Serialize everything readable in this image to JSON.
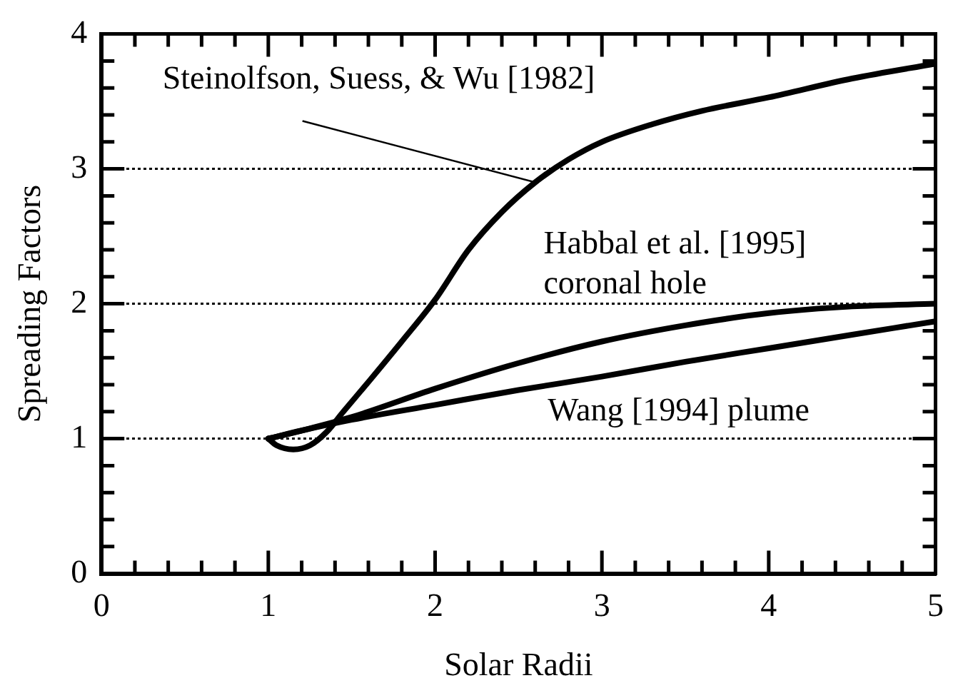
{
  "chart_data": {
    "type": "line",
    "xlabel": "Solar Radii",
    "ylabel": "Spreading Factors",
    "xlim": [
      0,
      5
    ],
    "ylim": [
      0,
      4
    ],
    "xticks": [
      0,
      {
        "value": 0.2,
        "label": null
      },
      {
        "value": 0.4,
        "label": null
      },
      {
        "value": 0.6,
        "label": null
      },
      {
        "value": 0.8,
        "label": null
      },
      1,
      {
        "value": 1.2,
        "label": null
      },
      {
        "value": 1.4,
        "label": null
      },
      {
        "value": 1.6,
        "label": null
      },
      {
        "value": 1.8,
        "label": null
      },
      2,
      {
        "value": 2.2,
        "label": null
      },
      {
        "value": 2.4,
        "label": null
      },
      {
        "value": 2.6,
        "label": null
      },
      {
        "value": 2.8,
        "label": null
      },
      3,
      {
        "value": 3.2,
        "label": null
      },
      {
        "value": 3.4,
        "label": null
      },
      {
        "value": 3.6,
        "label": null
      },
      {
        "value": 3.8,
        "label": null
      },
      4,
      {
        "value": 4.2,
        "label": null
      },
      {
        "value": 4.4,
        "label": null
      },
      {
        "value": 4.6,
        "label": null
      },
      {
        "value": 4.8,
        "label": null
      },
      5
    ],
    "yticks": [
      0,
      {
        "value": 0.2,
        "label": null
      },
      {
        "value": 0.4,
        "label": null
      },
      {
        "value": 0.6,
        "label": null
      },
      {
        "value": 0.8,
        "label": null
      },
      1,
      {
        "value": 1.2,
        "label": null
      },
      {
        "value": 1.4,
        "label": null
      },
      {
        "value": 1.6,
        "label": null
      },
      {
        "value": 1.8,
        "label": null
      },
      2,
      {
        "value": 2.2,
        "label": null
      },
      {
        "value": 2.4,
        "label": null
      },
      {
        "value": 2.6,
        "label": null
      },
      {
        "value": 2.8,
        "label": null
      },
      3,
      {
        "value": 3.2,
        "label": null
      },
      {
        "value": 3.4,
        "label": null
      },
      {
        "value": 3.6,
        "label": null
      },
      {
        "value": 3.8,
        "label": null
      },
      4
    ],
    "grid": "y",
    "legend": false,
    "marker": "none",
    "line_style": "solid",
    "series": [
      {
        "color": "#000000",
        "x": [
          1,
          1.05,
          1.15,
          1.25,
          1.35,
          1.45,
          1.6,
          1.8,
          2,
          2.2,
          2.4,
          2.6,
          2.8,
          3,
          3.3,
          3.6,
          4,
          4.5,
          5
        ],
        "values": [
          1,
          0.95,
          0.92,
          0.95,
          1.05,
          1.2,
          1.42,
          1.72,
          2.03,
          2.4,
          2.68,
          2.9,
          3.07,
          3.2,
          3.33,
          3.43,
          3.53,
          3.67,
          3.78
        ]
      },
      {
        "color": "#000000",
        "x": [
          1,
          1.2,
          1.5,
          2,
          2.5,
          3,
          3.5,
          4,
          4.5,
          5
        ],
        "values": [
          1,
          1.06,
          1.16,
          1.37,
          1.56,
          1.72,
          1.84,
          1.93,
          1.98,
          2.0
        ]
      },
      {
        "color": "#000000",
        "x": [
          1,
          1.2,
          1.5,
          2,
          2.5,
          3,
          3.5,
          4,
          4.5,
          5
        ],
        "values": [
          1,
          1.06,
          1.14,
          1.25,
          1.36,
          1.46,
          1.57,
          1.67,
          1.77,
          1.87
        ]
      }
    ],
    "annotations": [
      {
        "text": "Steinolfson, Suess, & Wu [1982]",
        "x": 2.6,
        "y": 2.9
      },
      "Habbal et al. [1995]\ncoronal hole",
      "Wang [1994] plume"
    ]
  }
}
